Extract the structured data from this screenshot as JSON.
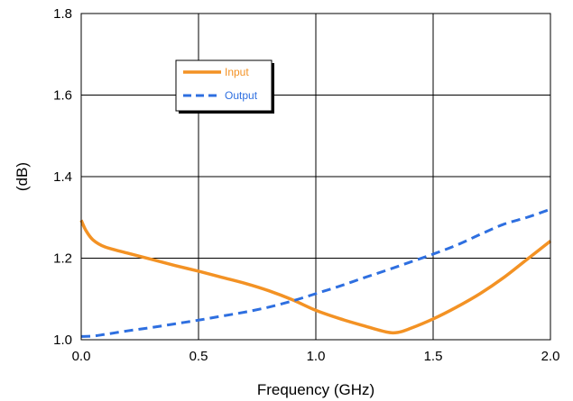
{
  "chart_data": {
    "type": "line",
    "title": "",
    "xlabel": "Frequency (GHz)",
    "ylabel": "(dB)",
    "xlim": [
      0,
      2.0
    ],
    "ylim": [
      1.0,
      1.8
    ],
    "xticks": [
      0,
      0.5,
      1.0,
      1.5,
      2.0
    ],
    "xtick_labels": [
      "0.0",
      "0.5",
      "1.0",
      "1.5",
      "2.0"
    ],
    "yticks": [
      1.0,
      1.2,
      1.4,
      1.6,
      1.8
    ],
    "ytick_labels": [
      "1.0",
      "1.2",
      "1.4",
      "1.6",
      "1.8"
    ],
    "grid": true,
    "legend": "upper-left",
    "series": [
      {
        "name": "Input",
        "color": "#f39224",
        "style": "solid",
        "x": [
          0.0,
          0.02,
          0.05,
          0.1,
          0.2,
          0.3,
          0.4,
          0.5,
          0.6,
          0.7,
          0.8,
          0.9,
          1.0,
          1.1,
          1.2,
          1.3,
          1.35,
          1.4,
          1.5,
          1.6,
          1.7,
          1.8,
          1.9,
          2.0
        ],
        "values": [
          1.293,
          1.268,
          1.245,
          1.228,
          1.212,
          1.197,
          1.182,
          1.168,
          1.153,
          1.138,
          1.12,
          1.098,
          1.072,
          1.052,
          1.035,
          1.019,
          1.018,
          1.027,
          1.051,
          1.08,
          1.113,
          1.152,
          1.197,
          1.242
        ]
      },
      {
        "name": "Output",
        "color": "#2e6fe0",
        "style": "dashed",
        "x": [
          0.0,
          0.05,
          0.1,
          0.2,
          0.3,
          0.4,
          0.5,
          0.6,
          0.7,
          0.8,
          0.9,
          1.0,
          1.1,
          1.2,
          1.3,
          1.4,
          1.5,
          1.6,
          1.7,
          1.8,
          1.9,
          2.0
        ],
        "values": [
          1.008,
          1.009,
          1.013,
          1.022,
          1.03,
          1.039,
          1.048,
          1.058,
          1.068,
          1.08,
          1.095,
          1.113,
          1.131,
          1.151,
          1.17,
          1.19,
          1.21,
          1.232,
          1.258,
          1.283,
          1.3,
          1.32
        ]
      }
    ]
  }
}
